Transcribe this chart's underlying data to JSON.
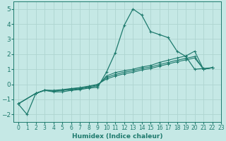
{
  "title": "",
  "xlabel": "Humidex (Indice chaleur)",
  "ylabel": "",
  "xlim": [
    -0.5,
    23
  ],
  "ylim": [
    -2.5,
    5.5
  ],
  "bg_color": "#c5e8e5",
  "grid_color": "#aed4d0",
  "line_color": "#1e7a6d",
  "xticks": [
    0,
    1,
    2,
    3,
    4,
    5,
    6,
    7,
    8,
    9,
    10,
    11,
    12,
    13,
    14,
    15,
    16,
    17,
    18,
    19,
    20,
    21,
    22,
    23
  ],
  "yticks": [
    -2,
    -1,
    0,
    1,
    2,
    3,
    4,
    5
  ],
  "curves": [
    {
      "x": [
        0,
        1,
        2,
        3,
        4,
        5,
        6,
        7,
        8,
        9,
        10,
        11,
        12,
        13,
        14,
        15,
        16,
        17,
        18,
        19,
        20,
        21,
        22
      ],
      "y": [
        -1.3,
        -2.0,
        -0.6,
        -0.4,
        -0.5,
        -0.5,
        -0.4,
        -0.35,
        -0.25,
        -0.2,
        0.8,
        2.1,
        3.9,
        5.0,
        4.6,
        3.5,
        3.3,
        3.1,
        2.2,
        1.85,
        1.0,
        1.05,
        1.1
      ]
    },
    {
      "x": [
        0,
        2,
        3,
        4,
        5,
        6,
        7,
        8,
        9,
        10,
        11,
        12,
        13,
        14,
        15,
        16,
        17,
        18,
        19,
        20,
        21,
        22
      ],
      "y": [
        -1.3,
        -0.6,
        -0.4,
        -0.45,
        -0.4,
        -0.35,
        -0.3,
        -0.2,
        -0.1,
        0.55,
        0.78,
        0.9,
        1.0,
        1.15,
        1.25,
        1.45,
        1.6,
        1.75,
        1.88,
        2.2,
        1.0,
        1.1
      ]
    },
    {
      "x": [
        0,
        2,
        3,
        4,
        5,
        6,
        7,
        8,
        9,
        10,
        11,
        12,
        13,
        14,
        15,
        16,
        17,
        18,
        19,
        20,
        21,
        22
      ],
      "y": [
        -1.3,
        -0.6,
        -0.4,
        -0.45,
        -0.4,
        -0.3,
        -0.25,
        -0.15,
        -0.05,
        0.45,
        0.65,
        0.8,
        0.9,
        1.05,
        1.15,
        1.3,
        1.45,
        1.6,
        1.72,
        1.85,
        1.0,
        1.1
      ]
    },
    {
      "x": [
        0,
        2,
        3,
        4,
        5,
        6,
        7,
        8,
        9,
        10,
        11,
        12,
        13,
        14,
        15,
        16,
        17,
        18,
        19,
        20,
        21,
        22
      ],
      "y": [
        -1.3,
        -0.6,
        -0.38,
        -0.4,
        -0.35,
        -0.28,
        -0.22,
        -0.12,
        0.0,
        0.35,
        0.55,
        0.7,
        0.8,
        0.95,
        1.05,
        1.2,
        1.35,
        1.5,
        1.62,
        1.75,
        1.0,
        1.1
      ]
    }
  ]
}
